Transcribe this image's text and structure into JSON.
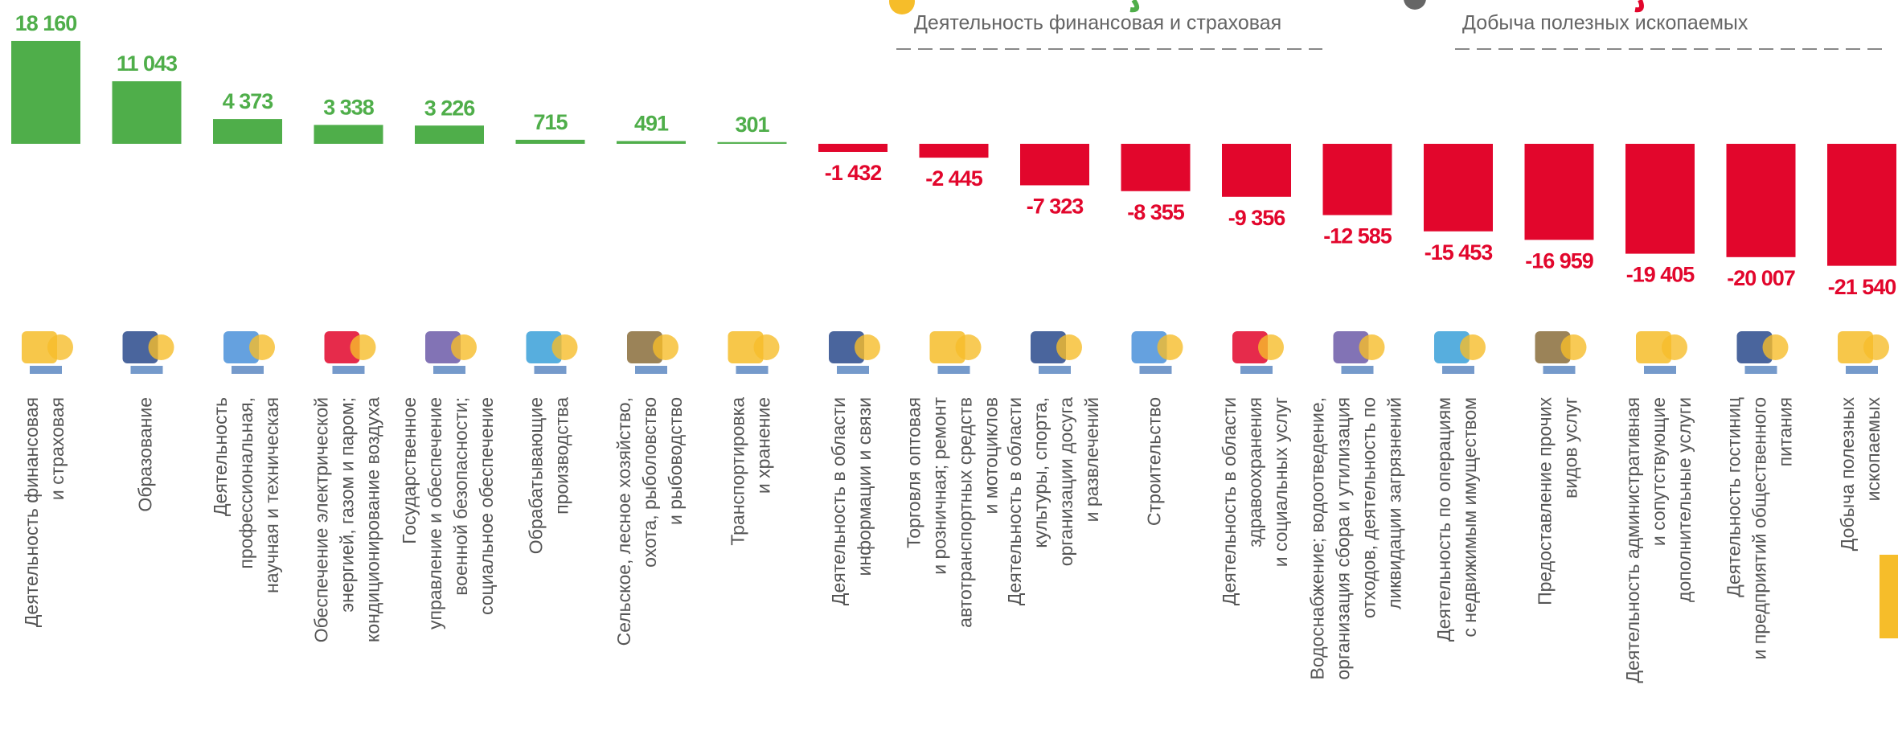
{
  "chart_data": {
    "type": "bar",
    "annotations": [
      "Деятельность финансовая и страховая",
      "Добыча полезных ископаемых"
    ],
    "categories": [
      [
        "Деятельность финансовая",
        "и страховая"
      ],
      [
        "Образование"
      ],
      [
        "Деятельность",
        "профессиональная,",
        "научная и техническая"
      ],
      [
        "Обеспечение электрической",
        "энергией, газом и паром;",
        "кондиционирование воздуха"
      ],
      [
        "Государственное",
        "управление и обеспечение",
        "военной безопасности;",
        "социальное обеспечение"
      ],
      [
        "Обрабатывающие",
        "производства"
      ],
      [
        "Сельское, лесное хозяйство,",
        "охота, рыболовство",
        "и рыбоводство"
      ],
      [
        "Транспортировка",
        "и хранение"
      ],
      [
        "Деятельность в области",
        "информации и связи"
      ],
      [
        "Торговля оптовая",
        "и розничная; ремонт",
        "автотранспортных средств",
        "и мотоциклов"
      ],
      [
        "Деятельность в области",
        "культуры, спорта,",
        "организации досуга",
        "и развлечений"
      ],
      [
        "Строительство"
      ],
      [
        "Деятельность в области",
        "здравоохранения",
        "и социальных услуг"
      ],
      [
        "Водоснабжение; водоотведение,",
        "организация сбора и утилизация",
        "отходов, деятельность по",
        "ликвидации загрязнений"
      ],
      [
        "Деятельность по операциям",
        "с недвижимым имуществом"
      ],
      [
        "Предоставление прочих",
        "видов услуг"
      ],
      [
        "Деятельность административная",
        "и сопутствующие",
        "дополнительные услуги"
      ],
      [
        "Деятельность гостиниц",
        "и предприятий общественного",
        "питания"
      ],
      [
        "Добыча полезных",
        "ископаемых"
      ]
    ],
    "values": [
      18160,
      11043,
      4373,
      3338,
      3226,
      715,
      491,
      301,
      -1432,
      -2445,
      -7323,
      -8355,
      -9356,
      -12585,
      -15453,
      -16959,
      -19405,
      -20007,
      -21540
    ],
    "value_labels": [
      "18 160",
      "11 043",
      "4 373",
      "3 338",
      "3 226",
      "715",
      "491",
      "301",
      "-1 432",
      "-2 445",
      "-7 323",
      "-8 355",
      "-9 356",
      "-12 585",
      "-15 453",
      "-16 959",
      "-19 405",
      "-20 007",
      "-21 540"
    ],
    "positive_color": "#4fae4a",
    "negative_color": "#e2062c",
    "ylim": [
      -25000,
      20000
    ]
  }
}
